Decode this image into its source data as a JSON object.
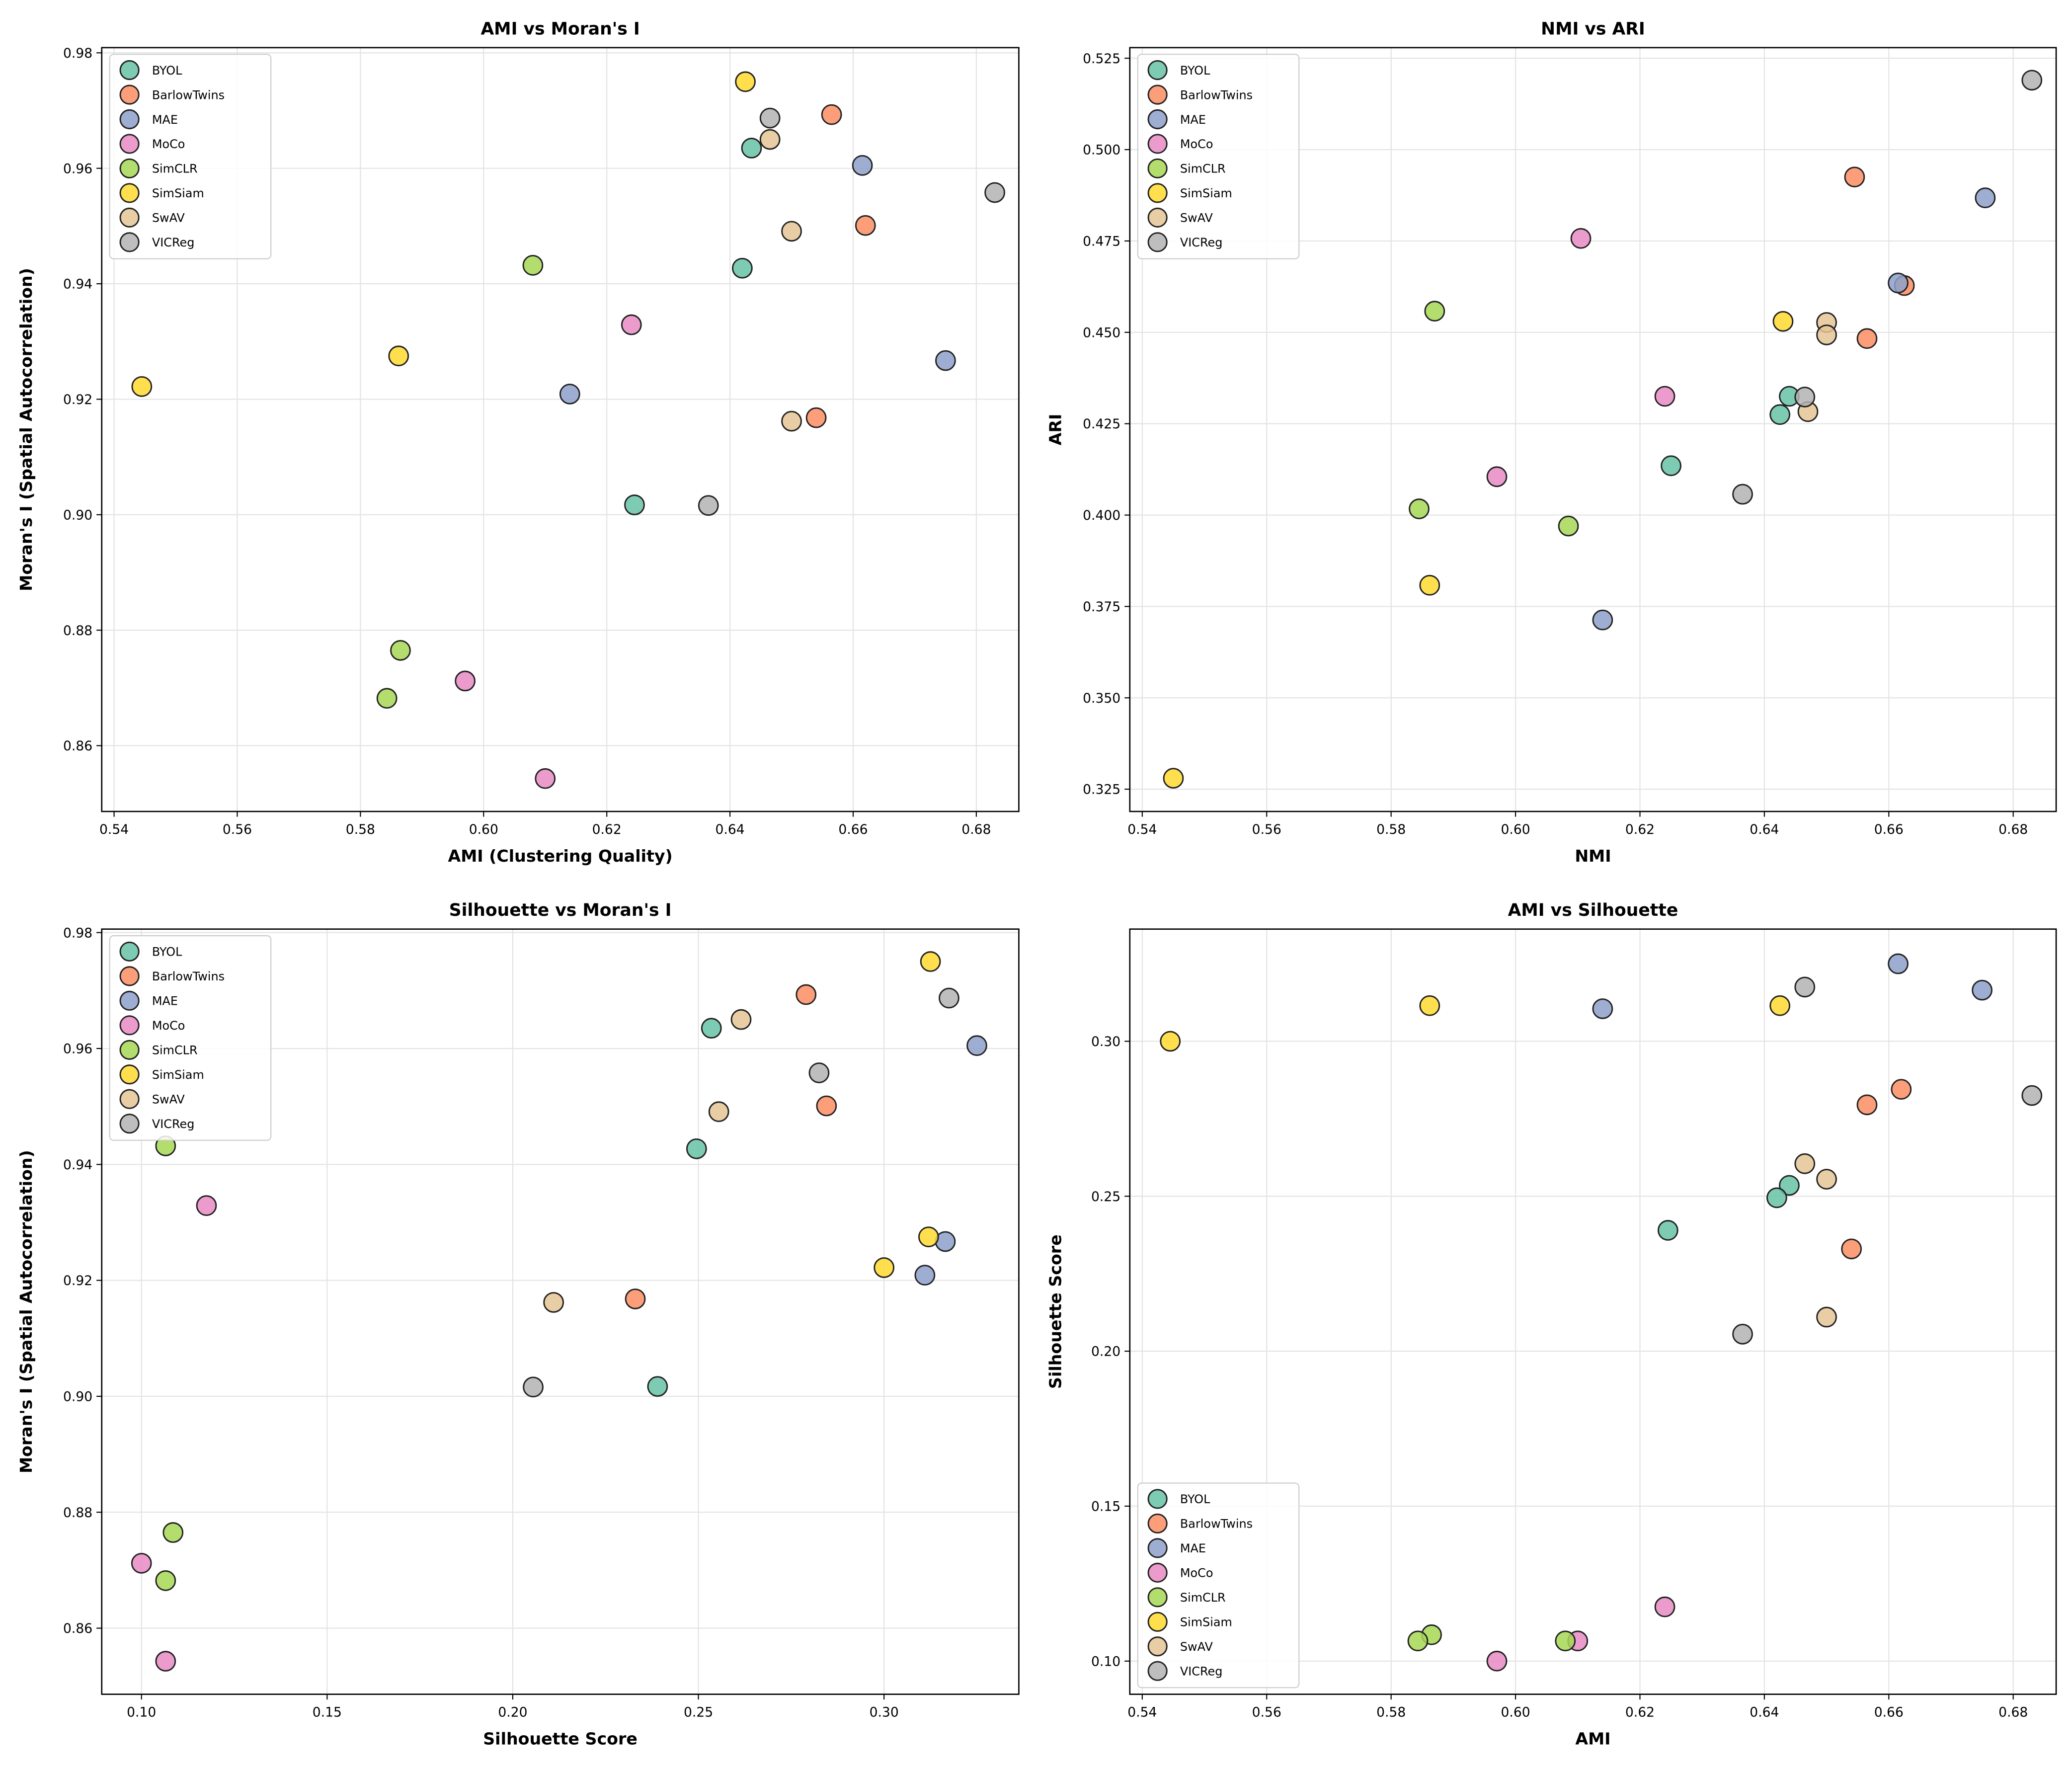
{
  "chart_data": [
    {
      "type": "scatter",
      "title": "AMI vs Moran's I",
      "x_label": "AMI (Clustering Quality)",
      "y_label": "Moran's I (Spatial Autocorrelation)",
      "xlim": [
        0.538,
        0.6869
      ],
      "ylim": [
        0.8486,
        0.9809
      ],
      "xticks": [
        0.54,
        0.56,
        0.58,
        {
          "value": 0.6,
          "label": "0.60"
        },
        0.62,
        0.64,
        0.66,
        0.68
      ],
      "yticks": [
        0.86,
        0.88,
        {
          "value": 0.9,
          "label": "0.90"
        },
        0.92,
        0.94,
        0.96,
        0.98
      ],
      "grid": true,
      "legend": "upper left",
      "series": [
        {
          "name": "BYOL",
          "color": "#66c2a5",
          "x": [
            0.6435,
            0.642,
            0.6245
          ],
          "values": [
            0.9635,
            0.9427,
            0.9017
          ]
        },
        {
          "name": "BarlowTwins",
          "color": "#fc8d62",
          "x": [
            0.6565,
            0.662,
            0.654
          ],
          "values": [
            0.9693,
            0.9501,
            0.9168
          ]
        },
        {
          "name": "MAE",
          "color": "#8da0cb",
          "x": [
            0.6615,
            0.614,
            0.675
          ],
          "values": [
            0.9605,
            0.9209,
            0.9267
          ]
        },
        {
          "name": "MoCo",
          "color": "#e78ac3",
          "x": [
            0.624,
            0.597,
            0.61
          ],
          "values": [
            0.9329,
            0.8712,
            0.8543
          ]
        },
        {
          "name": "SimCLR",
          "color": "#a6d854",
          "x": [
            0.608,
            0.5865,
            0.5843
          ],
          "values": [
            0.9432,
            0.8765,
            0.8682
          ]
        },
        {
          "name": "SimSiam",
          "color": "#ffd92f",
          "x": [
            0.6425,
            0.5862,
            0.5445
          ],
          "values": [
            0.975,
            0.9275,
            0.9222
          ]
        },
        {
          "name": "SwAV",
          "color": "#e5c494",
          "x": [
            0.6465,
            0.65,
            0.65
          ],
          "values": [
            0.965,
            0.9491,
            0.9162
          ]
        },
        {
          "name": "VICReg",
          "color": "#b3b3b3",
          "x": [
            0.6465,
            0.683,
            0.6365
          ],
          "values": [
            0.9687,
            0.9558,
            0.9016
          ]
        }
      ]
    },
    {
      "type": "scatter",
      "title": "NMI vs ARI",
      "x_label": "NMI",
      "y_label": "ARI",
      "xlim": [
        0.538,
        0.6869
      ],
      "ylim": [
        0.3189,
        0.5279
      ],
      "xticks": [
        0.54,
        0.56,
        0.58,
        {
          "value": 0.6,
          "label": "0.60"
        },
        0.62,
        0.64,
        0.66,
        0.68
      ],
      "yticks": [
        0.325,
        {
          "value": 0.35,
          "label": "0.350"
        },
        0.375,
        {
          "value": 0.4,
          "label": "0.400"
        },
        0.425,
        {
          "value": 0.45,
          "label": "0.450"
        },
        0.475,
        {
          "value": 0.5,
          "label": "0.500"
        },
        0.525
      ],
      "grid": true,
      "legend": "upper left",
      "series": [
        {
          "name": "BYOL",
          "color": "#66c2a5",
          "x": [
            0.644,
            0.6425,
            0.625
          ],
          "values": [
            0.4325,
            0.4275,
            0.4135
          ]
        },
        {
          "name": "BarlowTwins",
          "color": "#fc8d62",
          "x": [
            0.6545,
            0.6625,
            0.6565
          ],
          "values": [
            0.4925,
            0.4628,
            0.4483
          ]
        },
        {
          "name": "MAE",
          "color": "#8da0cb",
          "x": [
            0.6755,
            0.6615,
            0.614
          ],
          "values": [
            0.4868,
            0.4635,
            0.3713
          ]
        },
        {
          "name": "MoCo",
          "color": "#e78ac3",
          "x": [
            0.6105,
            0.624,
            0.597
          ],
          "values": [
            0.4757,
            0.4325,
            0.4105
          ]
        },
        {
          "name": "SimCLR",
          "color": "#a6d854",
          "x": [
            0.587,
            0.5845,
            0.6085
          ],
          "values": [
            0.4558,
            0.4017,
            0.397
          ]
        },
        {
          "name": "SimSiam",
          "color": "#ffd92f",
          "x": [
            0.643,
            0.5862,
            0.545
          ],
          "values": [
            0.453,
            0.3808,
            0.328
          ]
        },
        {
          "name": "SwAV",
          "color": "#e5c494",
          "x": [
            0.65,
            0.65,
            0.647
          ],
          "values": [
            0.4527,
            0.4493,
            0.4283
          ]
        },
        {
          "name": "VICReg",
          "color": "#b3b3b3",
          "x": [
            0.683,
            0.6465,
            0.6365
          ],
          "values": [
            0.519,
            0.4323,
            0.4057
          ]
        }
      ]
    },
    {
      "type": "scatter",
      "title": "Silhouette vs Moran's I",
      "x_label": "Silhouette Score",
      "y_label": "Moran's I (Spatial Autocorrelation)",
      "xlim": [
        0.0893,
        0.3363
      ],
      "ylim": [
        0.8486,
        0.9806
      ],
      "xticks": [
        {
          "value": 0.1,
          "label": "0.10"
        },
        0.15,
        {
          "value": 0.2,
          "label": "0.20"
        },
        0.25,
        {
          "value": 0.3,
          "label": "0.30"
        }
      ],
      "yticks": [
        0.86,
        0.88,
        {
          "value": 0.9,
          "label": "0.90"
        },
        0.92,
        0.94,
        0.96,
        0.98
      ],
      "grid": true,
      "legend": "upper left",
      "series": [
        {
          "name": "BYOL",
          "color": "#66c2a5",
          "x": [
            0.2535,
            0.2495,
            0.239
          ],
          "values": [
            0.9635,
            0.9427,
            0.9017
          ]
        },
        {
          "name": "BarlowTwins",
          "color": "#fc8d62",
          "x": [
            0.279,
            0.2845,
            0.233
          ],
          "values": [
            0.9693,
            0.9501,
            0.9168
          ]
        },
        {
          "name": "MAE",
          "color": "#8da0cb",
          "x": [
            0.325,
            0.3165,
            0.311
          ],
          "values": [
            0.9605,
            0.9267,
            0.9209
          ]
        },
        {
          "name": "MoCo",
          "color": "#e78ac3",
          "x": [
            0.1175,
            0.1,
            0.1065
          ],
          "values": [
            0.9329,
            0.8712,
            0.8543
          ]
        },
        {
          "name": "SimCLR",
          "color": "#a6d854",
          "x": [
            0.1065,
            0.1085,
            0.1065
          ],
          "values": [
            0.9432,
            0.8765,
            0.8682
          ]
        },
        {
          "name": "SimSiam",
          "color": "#ffd92f",
          "x": [
            0.3125,
            0.312,
            0.3
          ],
          "values": [
            0.975,
            0.9275,
            0.9222
          ]
        },
        {
          "name": "SwAV",
          "color": "#e5c494",
          "x": [
            0.2615,
            0.2555,
            0.211
          ],
          "values": [
            0.965,
            0.9491,
            0.9162
          ]
        },
        {
          "name": "VICReg",
          "color": "#b3b3b3",
          "x": [
            0.3175,
            0.2825,
            0.2055
          ],
          "values": [
            0.9687,
            0.9558,
            0.9016
          ]
        }
      ]
    },
    {
      "type": "scatter",
      "title": "AMI vs Silhouette",
      "x_label": "AMI",
      "y_label": "Silhouette Score",
      "xlim": [
        0.538,
        0.6869
      ],
      "ylim": [
        0.0893,
        0.3362
      ],
      "xticks": [
        0.54,
        0.56,
        0.58,
        {
          "value": 0.6,
          "label": "0.60"
        },
        0.62,
        0.64,
        0.66,
        0.68
      ],
      "yticks": [
        {
          "value": 0.1,
          "label": "0.10"
        },
        0.15,
        {
          "value": 0.2,
          "label": "0.20"
        },
        0.25,
        {
          "value": 0.3,
          "label": "0.30"
        }
      ],
      "grid": true,
      "legend": "lower left",
      "series": [
        {
          "name": "BYOL",
          "color": "#66c2a5",
          "x": [
            0.644,
            0.642,
            0.6245
          ],
          "values": [
            0.2535,
            0.2495,
            0.239
          ]
        },
        {
          "name": "BarlowTwins",
          "color": "#fc8d62",
          "x": [
            0.6565,
            0.662,
            0.654
          ],
          "values": [
            0.2795,
            0.2845,
            0.233
          ]
        },
        {
          "name": "MAE",
          "color": "#8da0cb",
          "x": [
            0.6615,
            0.675,
            0.614
          ],
          "values": [
            0.325,
            0.3165,
            0.3105
          ]
        },
        {
          "name": "MoCo",
          "color": "#e78ac3",
          "x": [
            0.624,
            0.597,
            0.61
          ],
          "values": [
            0.1175,
            0.1,
            0.1065
          ]
        },
        {
          "name": "SimCLR",
          "color": "#a6d854",
          "x": [
            0.608,
            0.5865,
            0.5843
          ],
          "values": [
            0.1065,
            0.1085,
            0.1065
          ]
        },
        {
          "name": "SimSiam",
          "color": "#ffd92f",
          "x": [
            0.5445,
            0.5862,
            0.6425
          ],
          "values": [
            0.3,
            0.3115,
            0.3115
          ]
        },
        {
          "name": "SwAV",
          "color": "#e5c494",
          "x": [
            0.6465,
            0.65,
            0.65
          ],
          "values": [
            0.2605,
            0.2555,
            0.211
          ]
        },
        {
          "name": "VICReg",
          "color": "#b3b3b3",
          "x": [
            0.6465,
            0.683,
            0.6365
          ],
          "values": [
            0.3175,
            0.2825,
            0.2055
          ]
        }
      ]
    }
  ]
}
